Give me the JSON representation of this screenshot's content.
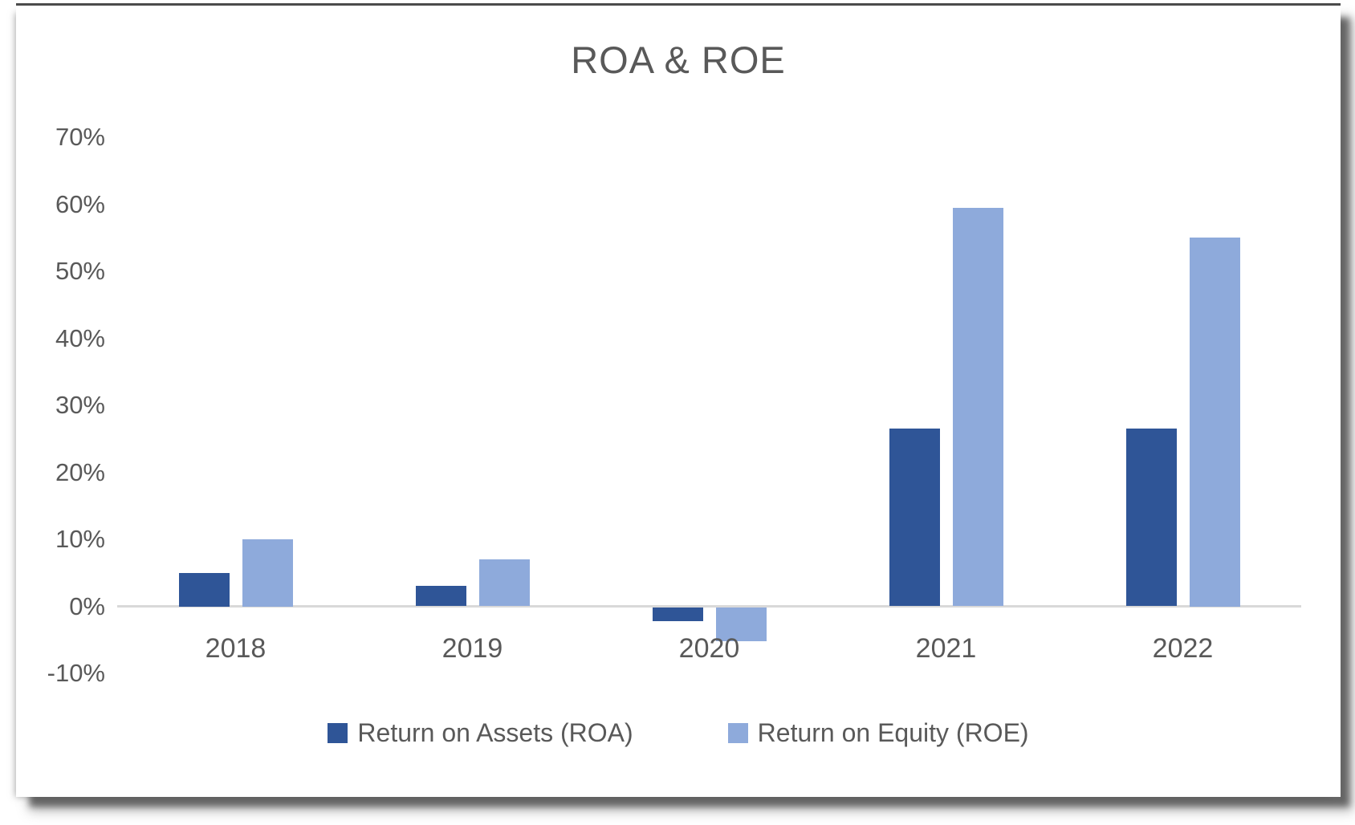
{
  "chart_data": {
    "type": "bar",
    "title": "ROA & ROE",
    "categories": [
      "2018",
      "2019",
      "2020",
      "2021",
      "2022"
    ],
    "series": [
      {
        "name": "Return on Assets (ROA)",
        "color": "#2F5597",
        "values": [
          5,
          3,
          -2,
          26.5,
          26.5
        ]
      },
      {
        "name": "Return on Equity (ROE)",
        "color": "#8EAADB",
        "values": [
          10,
          7,
          -5,
          59.5,
          55
        ]
      }
    ],
    "ylim": [
      -10,
      70
    ],
    "y_tick_step": 10,
    "y_tick_labels": [
      "70%",
      "60%",
      "50%",
      "40%",
      "30%",
      "20%",
      "10%",
      "0%",
      "-10%"
    ],
    "xlabel": "",
    "ylabel": "",
    "grid": false,
    "legend_position": "bottom"
  },
  "styles": {
    "text_color": "#595959",
    "axis_line_color": "#D9D9D9",
    "card_background": "#FFFFFF"
  }
}
